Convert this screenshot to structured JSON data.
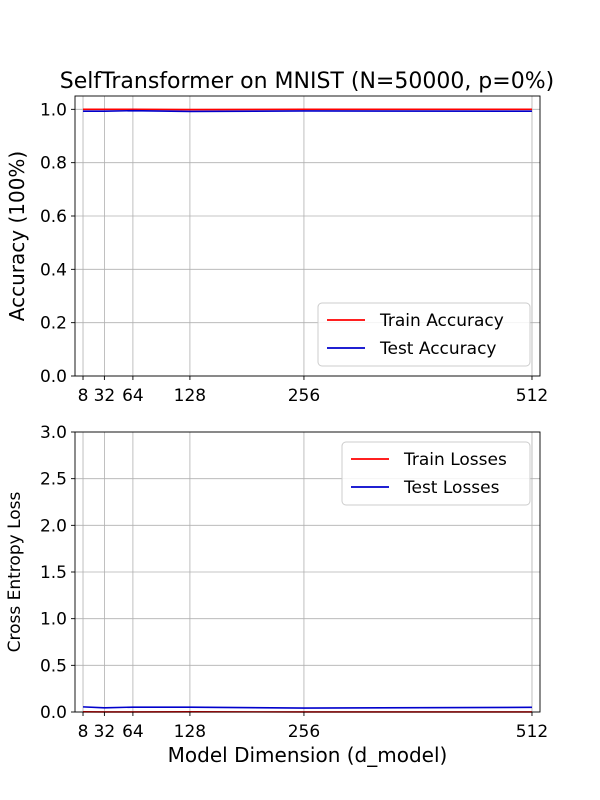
{
  "title": "SelfTransformer on MNIST (N=50000, p=0%)",
  "chart_data": [
    {
      "type": "line",
      "x": [
        8,
        32,
        64,
        128,
        256,
        512
      ],
      "xticks": [
        "8",
        "32",
        "64",
        "128",
        "256",
        "512"
      ],
      "xlim": [
        -1,
        521
      ],
      "ylim": [
        0,
        1.05
      ],
      "yticks": [
        "0.0",
        "0.2",
        "0.4",
        "0.6",
        "0.8",
        "1.0"
      ],
      "ytick_values": [
        0,
        0.2,
        0.4,
        0.6,
        0.8,
        1.0
      ],
      "xlabel": "",
      "ylabel": "Accuracy (100%)",
      "grid": true,
      "legend_position": "lower-right",
      "series": [
        {
          "name": "Train Accuracy",
          "color": "#ff0000",
          "values": [
            1.0,
            1.0,
            1.0,
            0.999,
            1.0,
            1.0
          ]
        },
        {
          "name": "Test Accuracy",
          "color": "#0000cc",
          "values": [
            0.993,
            0.993,
            0.995,
            0.992,
            0.994,
            0.993
          ]
        }
      ]
    },
    {
      "type": "line",
      "x": [
        8,
        32,
        64,
        128,
        256,
        512
      ],
      "xticks": [
        "8",
        "32",
        "64",
        "128",
        "256",
        "512"
      ],
      "xlim": [
        -1,
        521
      ],
      "ylim": [
        0,
        3.0
      ],
      "yticks": [
        "0.0",
        "0.5",
        "1.0",
        "1.5",
        "2.0",
        "2.5",
        "3.0"
      ],
      "ytick_values": [
        0,
        0.5,
        1.0,
        1.5,
        2.0,
        2.5,
        3.0
      ],
      "xlabel": "Model Dimension (d_model)",
      "ylabel": "Cross Entropy Loss",
      "grid": true,
      "legend_position": "upper-right",
      "series": [
        {
          "name": "Train Losses",
          "color": "#ff0000",
          "values": [
            0.002,
            0.001,
            0.001,
            0.002,
            0.001,
            0.001
          ]
        },
        {
          "name": "Test Losses",
          "color": "#0000cc",
          "values": [
            0.055,
            0.045,
            0.052,
            0.052,
            0.042,
            0.05
          ]
        }
      ]
    }
  ]
}
